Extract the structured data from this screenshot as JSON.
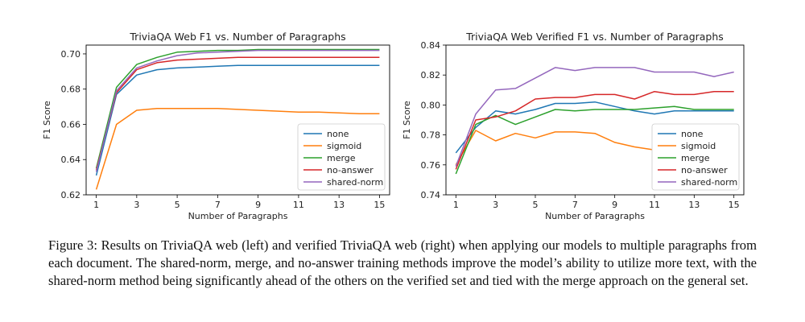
{
  "chart_data": [
    {
      "type": "line",
      "title": "TriviaQA Web F1 vs. Number of Paragraphs",
      "xlabel": "Number of Paragraphs",
      "ylabel": "F1 Score",
      "xlim": [
        0.5,
        15.5
      ],
      "ylim": [
        0.62,
        0.705
      ],
      "xticks": [
        1,
        3,
        5,
        7,
        9,
        11,
        13,
        15
      ],
      "yticks": [
        0.62,
        0.64,
        0.66,
        0.68,
        0.7
      ],
      "ytick_labels": [
        "0.62",
        "0.64",
        "0.66",
        "0.68",
        "0.70"
      ],
      "grid": false,
      "legend_position": "bottom-right",
      "x": [
        1,
        2,
        3,
        4,
        5,
        6,
        7,
        8,
        9,
        10,
        11,
        12,
        13,
        14,
        15
      ],
      "series": [
        {
          "name": "none",
          "color": "#1f77b4",
          "values": [
            0.631,
            0.677,
            0.688,
            0.691,
            0.692,
            0.6925,
            0.693,
            0.6935,
            0.6935,
            0.6935,
            0.6935,
            0.6935,
            0.6935,
            0.6935,
            0.6935
          ]
        },
        {
          "name": "sigmoid",
          "color": "#ff7f0e",
          "values": [
            0.623,
            0.66,
            0.668,
            0.669,
            0.669,
            0.669,
            0.669,
            0.6685,
            0.668,
            0.6675,
            0.667,
            0.667,
            0.6665,
            0.666,
            0.666
          ]
        },
        {
          "name": "merge",
          "color": "#2ca02c",
          "values": [
            0.635,
            0.681,
            0.694,
            0.698,
            0.701,
            0.7015,
            0.702,
            0.702,
            0.7025,
            0.7025,
            0.7025,
            0.7025,
            0.7025,
            0.7025,
            0.7025
          ]
        },
        {
          "name": "no-answer",
          "color": "#d62728",
          "values": [
            0.634,
            0.678,
            0.691,
            0.695,
            0.6965,
            0.697,
            0.6975,
            0.698,
            0.698,
            0.698,
            0.698,
            0.698,
            0.698,
            0.698,
            0.698
          ]
        },
        {
          "name": "shared-norm",
          "color": "#9467bd",
          "values": [
            0.633,
            0.679,
            0.692,
            0.696,
            0.699,
            0.7005,
            0.701,
            0.7015,
            0.702,
            0.702,
            0.702,
            0.702,
            0.702,
            0.702,
            0.702
          ]
        }
      ]
    },
    {
      "type": "line",
      "title": "TriviaQA Web Verified F1 vs. Number of Paragraphs",
      "xlabel": "Number of Paragraphs",
      "ylabel": "F1 Score",
      "xlim": [
        0.5,
        15.5
      ],
      "ylim": [
        0.74,
        0.84
      ],
      "xticks": [
        1,
        3,
        5,
        7,
        9,
        11,
        13,
        15
      ],
      "yticks": [
        0.74,
        0.76,
        0.78,
        0.8,
        0.82,
        0.84
      ],
      "ytick_labels": [
        "0.74",
        "0.76",
        "0.78",
        "0.80",
        "0.82",
        "0.84"
      ],
      "grid": false,
      "legend_position": "bottom-right",
      "x": [
        1,
        2,
        3,
        4,
        5,
        6,
        7,
        8,
        9,
        10,
        11,
        12,
        13,
        14,
        15
      ],
      "series": [
        {
          "name": "none",
          "color": "#1f77b4",
          "values": [
            0.768,
            0.785,
            0.796,
            0.794,
            0.797,
            0.801,
            0.801,
            0.802,
            0.799,
            0.796,
            0.794,
            0.796,
            0.796,
            0.796,
            0.796
          ]
        },
        {
          "name": "sigmoid",
          "color": "#ff7f0e",
          "values": [
            0.76,
            0.783,
            0.776,
            0.781,
            0.778,
            0.782,
            0.782,
            0.781,
            0.775,
            0.772,
            0.77,
            0.77,
            0.77,
            0.77,
            0.77
          ]
        },
        {
          "name": "merge",
          "color": "#2ca02c",
          "values": [
            0.754,
            0.787,
            0.793,
            0.787,
            0.792,
            0.797,
            0.796,
            0.797,
            0.797,
            0.797,
            0.798,
            0.799,
            0.797,
            0.797,
            0.797
          ]
        },
        {
          "name": "no-answer",
          "color": "#d62728",
          "values": [
            0.757,
            0.79,
            0.792,
            0.796,
            0.804,
            0.805,
            0.805,
            0.807,
            0.807,
            0.804,
            0.809,
            0.807,
            0.807,
            0.809,
            0.809
          ]
        },
        {
          "name": "shared-norm",
          "color": "#9467bd",
          "values": [
            0.759,
            0.794,
            0.81,
            0.811,
            0.818,
            0.825,
            0.823,
            0.825,
            0.825,
            0.825,
            0.822,
            0.822,
            0.822,
            0.819,
            0.822
          ]
        }
      ]
    }
  ],
  "caption": "Figure 3: Results on TriviaQA web (left) and verified TriviaQA web (right) when applying our models to multiple paragraphs from each document. The shared-norm, merge, and no-answer training methods improve the model’s ability to utilize more text, with the shared-norm method being significantly ahead of the others on the verified set and tied with the merge approach on the general set."
}
